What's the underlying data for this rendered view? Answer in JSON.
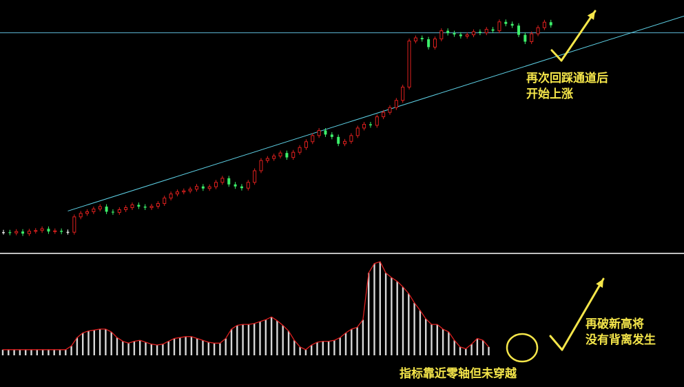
{
  "annotations": {
    "top_right": [
      "再次回踩通道后",
      "开始上涨"
    ],
    "bottom_right": [
      "再破新高将",
      "没有背离发生"
    ],
    "bottom_center": "指标靠近零轴但未穿越"
  },
  "colors": {
    "background": "#000000",
    "candle_up": "#e0201e",
    "candle_down": "#3cf06a",
    "candle_doji": "#ffffff",
    "channel_line": "#5fd3e8",
    "horizontal_line": "#5fb8d8",
    "histogram_bar": "#d8d8d8",
    "indicator_curve": "#e02020",
    "annotation": "#f5e64a",
    "panel_separator": "#ffffff"
  },
  "chart_data": [
    {
      "type": "candlestick",
      "price_closes": [
        100,
        99.8,
        100.2,
        99.6,
        100.3,
        100.5,
        101,
        100.2,
        100.4,
        100.1,
        100,
        104.5,
        105.5,
        106,
        106.8,
        107.5,
        106,
        105.8,
        106.6,
        107.2,
        108,
        107.5,
        107.2,
        107.6,
        108.4,
        110,
        111.2,
        111.8,
        112.1,
        112.6,
        113.4,
        112.8,
        113.3,
        114.6,
        115.8,
        114,
        113.4,
        112.9,
        114.6,
        118,
        121,
        121.6,
        122.3,
        123.2,
        121.9,
        123.4,
        124.8,
        126.5,
        128.3,
        129.8,
        128.6,
        127.9,
        125.9,
        126.6,
        128.3,
        130.5,
        131.6,
        131.3,
        133.8,
        135.1,
        136.5,
        138.6,
        142.5,
        156,
        156.9,
        156.5,
        154.2,
        156.6,
        159,
        158.3,
        157.9,
        157.4,
        157.8,
        158.7,
        158.4,
        159.4,
        159,
        161.6,
        161,
        160.5,
        157.8,
        155.8,
        158.1,
        159.9,
        161.5,
        160.6
      ],
      "reference_lines": [
        "horizontal resistance",
        "rising channel line"
      ],
      "grid": false
    },
    {
      "type": "bar",
      "description_of_values": "oscillator histogram, all values above zero",
      "values": [
        0.6,
        0.6,
        0.6,
        0.6,
        0.6,
        0.6,
        0.6,
        0.6,
        0.6,
        0.6,
        0.6,
        0.6,
        1,
        1.9,
        2.4,
        2.6,
        2.7,
        2.8,
        2.8,
        2.5,
        1.9,
        1.5,
        1.3,
        1.5,
        1.6,
        1.4,
        1.2,
        1.1,
        1.2,
        1.5,
        1.8,
        1.9,
        2,
        2,
        1.8,
        1.6,
        1.4,
        1.3,
        1.3,
        1.8,
        2.8,
        3.2,
        3.3,
        3.3,
        3.4,
        3.6,
        3.8,
        4.1,
        3.7,
        3.2,
        2.6,
        1.6,
        0.9,
        0.6,
        1.1,
        1.4,
        1.5,
        1.5,
        1.6,
        1.9,
        2.4,
        2.8,
        3,
        3.8,
        8.8,
        9.8,
        10,
        8.8,
        8.3,
        7.9,
        7.3,
        6.6,
        5.6,
        4.8,
        3.9,
        3.3,
        3.3,
        2.8,
        2.5,
        1.6,
        0.9,
        0.7,
        1.2,
        1.8,
        1.6,
        0.9
      ],
      "ylim": [
        0,
        10
      ]
    }
  ]
}
